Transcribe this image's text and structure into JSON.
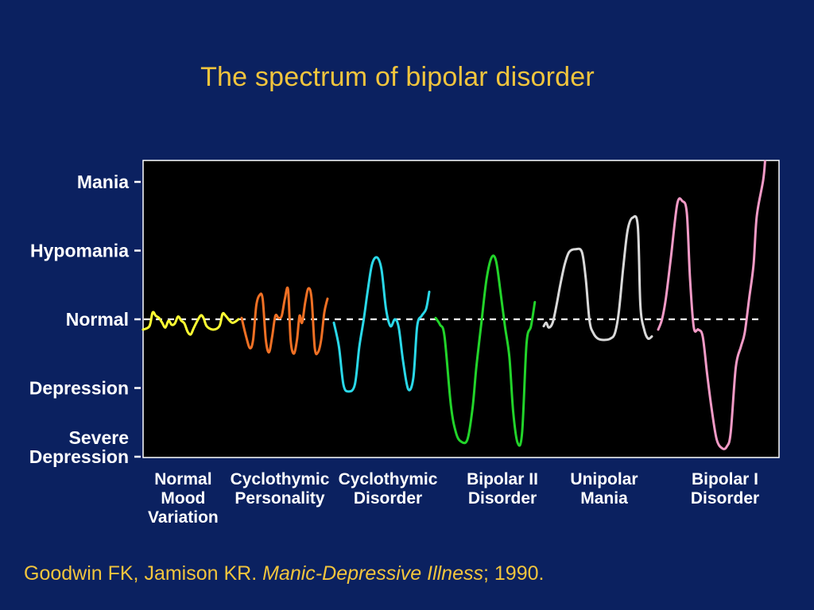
{
  "title": "The spectrum of bipolar disorder",
  "citation": {
    "authors": "Goodwin FK, Jamison KR. ",
    "work": "Manic-Depressive Illness",
    "year": "; 1990."
  },
  "colors": {
    "background": "#0b2160",
    "title": "#f2c53d",
    "plot_area": "#000000",
    "baseline": "#ffffff"
  },
  "chart_data": {
    "type": "line",
    "title": "The spectrum of bipolar disorder",
    "y_ticks": [
      {
        "value": 2,
        "label": [
          "Mania"
        ]
      },
      {
        "value": 1,
        "label": [
          "Hypomania"
        ]
      },
      {
        "value": 0,
        "label": [
          "Normal"
        ]
      },
      {
        "value": -1,
        "label": [
          "Depression"
        ]
      },
      {
        "value": -2,
        "label": [
          "Severe",
          "Depression"
        ]
      }
    ],
    "ylim": [
      -2,
      2.3
    ],
    "xlim": [
      0,
      100
    ],
    "baseline": {
      "value": 0,
      "style": "dashed"
    },
    "categories": [
      {
        "label": [
          "Normal",
          "Mood",
          "Variation"
        ],
        "x": 6.3
      },
      {
        "label": [
          "Cyclothymic",
          "Personality"
        ],
        "x": 21.5
      },
      {
        "label": [
          "Cyclothymic",
          "Disorder"
        ],
        "x": 38.5
      },
      {
        "label": [
          "Bipolar II",
          "Disorder"
        ],
        "x": 56.5
      },
      {
        "label": [
          "Unipolar",
          "Mania"
        ],
        "x": 72.5
      },
      {
        "label": [
          "Bipolar I",
          "Disorder"
        ],
        "x": 91.5
      }
    ],
    "series": [
      {
        "color": "#ffff33",
        "points": [
          [
            0,
            -0.15
          ],
          [
            1,
            -0.1
          ],
          [
            1.5,
            0.1
          ],
          [
            2,
            0.05
          ],
          [
            2.5,
            0.02
          ],
          [
            3,
            -0.05
          ],
          [
            3.5,
            -0.12
          ],
          [
            4,
            -0.02
          ],
          [
            4.5,
            -0.08
          ],
          [
            5,
            -0.06
          ],
          [
            5.5,
            0.04
          ],
          [
            6,
            -0.02
          ],
          [
            6.5,
            -0.06
          ],
          [
            7,
            -0.18
          ],
          [
            7.5,
            -0.22
          ],
          [
            8,
            -0.12
          ],
          [
            9,
            0.05
          ],
          [
            9.5,
            0.02
          ],
          [
            10,
            -0.1
          ],
          [
            11,
            -0.15
          ],
          [
            12,
            -0.1
          ],
          [
            12.5,
            0.08
          ],
          [
            13,
            0.05
          ],
          [
            14,
            -0.05
          ],
          [
            15,
            0
          ]
        ]
      },
      {
        "color": "#f07024",
        "points": [
          [
            15.5,
            0.02
          ],
          [
            16.2,
            -0.25
          ],
          [
            16.8,
            -0.42
          ],
          [
            17.3,
            -0.3
          ],
          [
            17.8,
            0.2
          ],
          [
            18.3,
            0.35
          ],
          [
            18.8,
            0.3
          ],
          [
            19.3,
            -0.3
          ],
          [
            19.8,
            -0.48
          ],
          [
            20.3,
            -0.25
          ],
          [
            20.8,
            0.05
          ],
          [
            21.3,
            0.02
          ],
          [
            21.8,
            0.05
          ],
          [
            22.3,
            0.3
          ],
          [
            22.8,
            0.43
          ],
          [
            23.2,
            -0.3
          ],
          [
            23.7,
            -0.5
          ],
          [
            24.2,
            -0.3
          ],
          [
            24.6,
            0.05
          ],
          [
            25,
            -0.05
          ],
          [
            25.5,
            0.25
          ],
          [
            26,
            0.45
          ],
          [
            26.5,
            0.3
          ],
          [
            27,
            -0.42
          ],
          [
            27.5,
            -0.48
          ],
          [
            28,
            -0.3
          ],
          [
            28.5,
            0.1
          ],
          [
            29,
            0.3
          ]
        ]
      },
      {
        "color": "#2ad8e8",
        "points": [
          [
            30,
            -0.05
          ],
          [
            30.8,
            -0.4
          ],
          [
            31.5,
            -0.95
          ],
          [
            32.3,
            -1.05
          ],
          [
            33.3,
            -0.95
          ],
          [
            34,
            -0.4
          ],
          [
            34.7,
            0
          ],
          [
            35.3,
            0.4
          ],
          [
            36,
            0.8
          ],
          [
            36.8,
            0.9
          ],
          [
            37.5,
            0.72
          ],
          [
            38.2,
            0.15
          ],
          [
            38.9,
            -0.1
          ],
          [
            39.6,
            0
          ],
          [
            40.2,
            -0.12
          ],
          [
            40.9,
            -0.62
          ],
          [
            41.7,
            -1.02
          ],
          [
            42.5,
            -0.85
          ],
          [
            43.1,
            -0.1
          ],
          [
            43.8,
            0.05
          ],
          [
            44.5,
            0.15
          ],
          [
            45,
            0.4
          ]
        ]
      },
      {
        "color": "#22d42a",
        "points": [
          [
            46,
            0.02
          ],
          [
            46.7,
            -0.08
          ],
          [
            47.4,
            -0.25
          ],
          [
            48.4,
            -1.25
          ],
          [
            49.2,
            -1.65
          ],
          [
            50,
            -1.78
          ],
          [
            51,
            -1.75
          ],
          [
            51.8,
            -1.3
          ],
          [
            52.4,
            -0.7
          ],
          [
            53.2,
            -0.05
          ],
          [
            54,
            0.58
          ],
          [
            54.8,
            0.9
          ],
          [
            55.5,
            0.85
          ],
          [
            56.2,
            0.4
          ],
          [
            56.9,
            -0.1
          ],
          [
            57.6,
            -0.55
          ],
          [
            58.2,
            -1.35
          ],
          [
            58.9,
            -1.8
          ],
          [
            59.6,
            -1.65
          ],
          [
            60.3,
            -0.35
          ],
          [
            61,
            -0.1
          ],
          [
            61.6,
            0.25
          ]
        ]
      },
      {
        "color": "#d9d9d9",
        "points": [
          [
            63,
            -0.1
          ],
          [
            63.4,
            -0.05
          ],
          [
            63.8,
            -0.12
          ],
          [
            64.4,
            -0.05
          ],
          [
            65,
            0.2
          ],
          [
            65.6,
            0.5
          ],
          [
            66.3,
            0.8
          ],
          [
            67,
            0.98
          ],
          [
            68,
            1.02
          ],
          [
            69,
            0.98
          ],
          [
            69.6,
            0.6
          ],
          [
            70.2,
            -0.02
          ],
          [
            70.8,
            -0.2
          ],
          [
            71.5,
            -0.28
          ],
          [
            72.5,
            -0.3
          ],
          [
            73.5,
            -0.28
          ],
          [
            74.2,
            -0.2
          ],
          [
            74.8,
            0.1
          ],
          [
            75.5,
            0.75
          ],
          [
            76.2,
            1.3
          ],
          [
            77,
            1.48
          ],
          [
            77.8,
            1.35
          ],
          [
            78.2,
            0.2
          ],
          [
            78.8,
            -0.15
          ],
          [
            79.4,
            -0.28
          ],
          [
            80,
            -0.25
          ]
        ]
      },
      {
        "color": "#f29ac6",
        "points": [
          [
            81,
            -0.15
          ],
          [
            81.6,
            0
          ],
          [
            82.2,
            0.3
          ],
          [
            83,
            0.9
          ],
          [
            84,
            1.68
          ],
          [
            84.8,
            1.72
          ],
          [
            85.5,
            1.55
          ],
          [
            86,
            0.6
          ],
          [
            86.6,
            -0.12
          ],
          [
            87.3,
            -0.15
          ],
          [
            88,
            -0.25
          ],
          [
            88.7,
            -0.8
          ],
          [
            89.4,
            -1.3
          ],
          [
            90.2,
            -1.75
          ],
          [
            91.1,
            -1.88
          ],
          [
            91.8,
            -1.85
          ],
          [
            92.4,
            -1.65
          ],
          [
            93.2,
            -0.7
          ],
          [
            94,
            -0.4
          ],
          [
            94.6,
            -0.2
          ],
          [
            95.3,
            0.3
          ],
          [
            96,
            0.8
          ],
          [
            96.5,
            1.5
          ],
          [
            97.5,
            2.02
          ],
          [
            97.8,
            2.3
          ]
        ]
      }
    ]
  }
}
